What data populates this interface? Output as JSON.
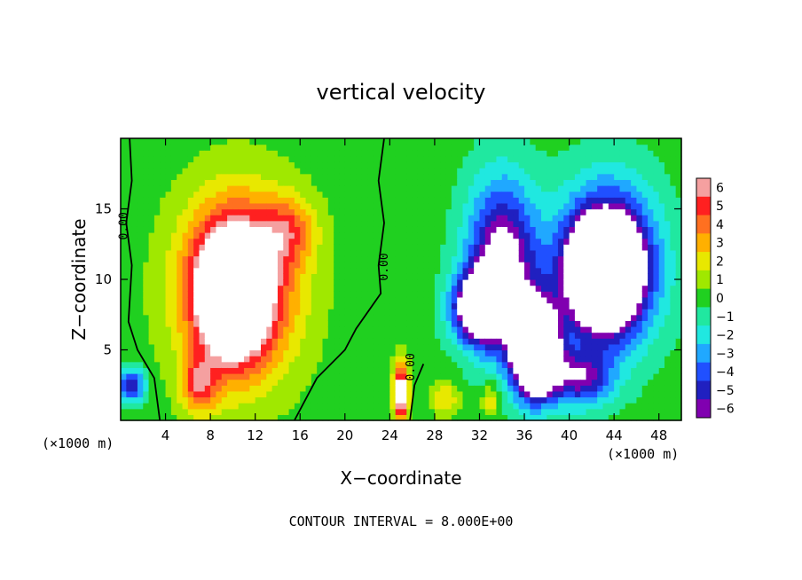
{
  "chart_data": {
    "type": "heatmap",
    "title": "vertical velocity",
    "xlabel": "X−coordinate",
    "ylabel": "Z−coordinate",
    "x_unit_left": "(×1000 m)",
    "x_unit_right": "(×1000 m)",
    "xlim": [
      0,
      50
    ],
    "ylim": [
      0,
      20
    ],
    "x_ticks": [
      "4",
      "8",
      "12",
      "16",
      "20",
      "24",
      "28",
      "32",
      "36",
      "40",
      "44",
      "48"
    ],
    "x_tick_values": [
      4,
      8,
      12,
      16,
      20,
      24,
      28,
      32,
      36,
      40,
      44,
      48
    ],
    "y_ticks": [
      "5",
      "10",
      "15"
    ],
    "y_tick_values": [
      5,
      10,
      15
    ],
    "colorbar_labels": [
      "6",
      "5",
      "4",
      "3",
      "2",
      "1",
      "0",
      "−1",
      "−2",
      "−3",
      "−4",
      "−5",
      "−6"
    ],
    "colorbar_values": [
      6,
      5,
      4,
      3,
      2,
      1,
      0,
      -1,
      -2,
      -3,
      -4,
      -5,
      -6
    ],
    "colorbar_colors": [
      "#f5a0a0",
      "#ff2020",
      "#ff7020",
      "#ffb000",
      "#e8e800",
      "#a0e800",
      "#20d020",
      "#20e8a0",
      "#20e8e0",
      "#20a8ff",
      "#2050ff",
      "#2020c0",
      "#8000b0"
    ],
    "contour_labels": [
      "0.00",
      "0.00",
      "0.00"
    ],
    "footer": "CONTOUR INTERVAL = 8.000E+00",
    "features": [
      {
        "x": 10.5,
        "z": 9.5,
        "rx": 6.5,
        "rz": 8.0,
        "w": 3.2
      },
      {
        "x": 10.0,
        "z": 9.0,
        "rx": 3.8,
        "rz": 5.5,
        "w": 4.0
      },
      {
        "x": 15.0,
        "z": 13.5,
        "rx": 3.0,
        "rz": 3.0,
        "w": 1.5
      },
      {
        "x": 7.0,
        "z": 2.5,
        "rx": 2.0,
        "rz": 2.5,
        "w": 2.0
      },
      {
        "x": 25.0,
        "z": 2.0,
        "rx": 0.8,
        "rz": 2.5,
        "w": 4.0
      },
      {
        "x": 34.0,
        "z": 11.0,
        "rx": 4.0,
        "rz": 7.5,
        "w": -3.5
      },
      {
        "x": 32.0,
        "z": 8.0,
        "rx": 3.0,
        "rz": 3.0,
        "w": -4.0
      },
      {
        "x": 37.0,
        "z": 5.0,
        "rx": 2.5,
        "rz": 4.0,
        "w": -7.0
      },
      {
        "x": 43.5,
        "z": 11.0,
        "rx": 5.5,
        "rz": 7.0,
        "w": -4.0
      },
      {
        "x": 43.0,
        "z": 10.5,
        "rx": 3.5,
        "rz": 4.2,
        "w": -5.0
      },
      {
        "x": 1.0,
        "z": 2.5,
        "rx": 1.5,
        "rz": 1.5,
        "w": -2.5
      },
      {
        "x": 41.0,
        "z": 3.0,
        "rx": 3.5,
        "rz": 2.5,
        "w": -2.5
      },
      {
        "x": 29.0,
        "z": 1.5,
        "rx": 1.5,
        "rz": 1.5,
        "w": 1.2
      },
      {
        "x": 33.0,
        "z": 1.5,
        "rx": 1.0,
        "rz": 1.5,
        "w": 1.2
      }
    ]
  }
}
